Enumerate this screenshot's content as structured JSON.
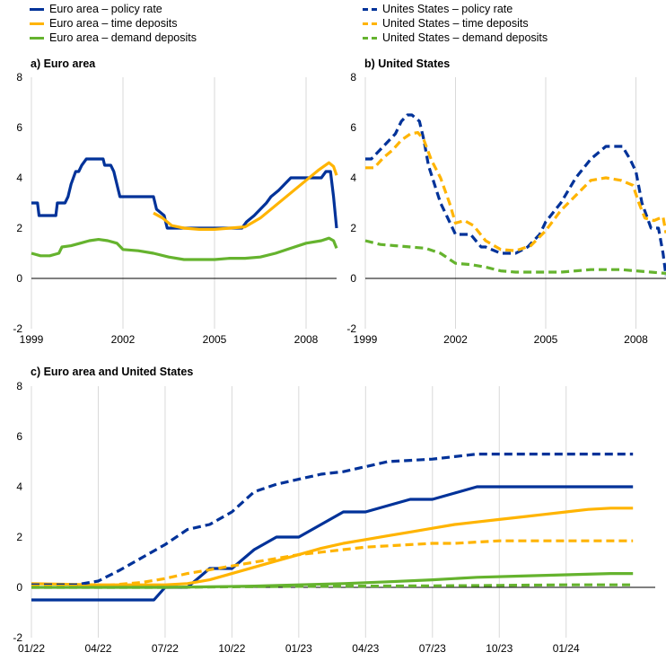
{
  "legend": [
    {
      "label": "Euro area – policy rate",
      "color": "#003299",
      "dash": false
    },
    {
      "label": "Euro area – time deposits",
      "color": "#FFB400",
      "dash": false
    },
    {
      "label": "Euro area – demand deposits",
      "color": "#65B32E",
      "dash": false
    },
    {
      "label": "Unites States – policy rate",
      "color": "#003299",
      "dash": true
    },
    {
      "label": "United States – time deposits",
      "color": "#FFB400",
      "dash": true
    },
    {
      "label": "United States – demand deposits",
      "color": "#65B32E",
      "dash": true
    }
  ],
  "chart_data": [
    {
      "type": "line",
      "title": "a) Euro area",
      "ylim": [
        -2,
        8
      ],
      "yticks": [
        -2,
        0,
        2,
        4,
        6,
        8
      ],
      "xlim": [
        1999.0,
        2009.0
      ],
      "xticks": [
        {
          "x": 1999,
          "label": "1999"
        },
        {
          "x": 2002,
          "label": "2002"
        },
        {
          "x": 2005,
          "label": "2005"
        },
        {
          "x": 2008,
          "label": "2008"
        }
      ],
      "grid": true,
      "series": [
        {
          "name": "Euro area – policy rate",
          "color": "#003299",
          "dash": false,
          "x": [
            1999.0,
            1999.2,
            1999.25,
            1999.8,
            1999.85,
            2000.1,
            2000.2,
            2000.3,
            2000.45,
            2000.55,
            2000.65,
            2000.8,
            2001.35,
            2001.4,
            2001.6,
            2001.7,
            2001.8,
            2001.9,
            2003.0,
            2003.1,
            2003.35,
            2003.45,
            2005.9,
            2006.05,
            2006.3,
            2006.5,
            2006.7,
            2006.85,
            2007.1,
            2007.3,
            2007.5,
            2008.5,
            2008.65,
            2008.8,
            2008.9,
            2009.0
          ],
          "y": [
            3.0,
            3.0,
            2.5,
            2.5,
            3.0,
            3.0,
            3.25,
            3.75,
            4.25,
            4.25,
            4.5,
            4.75,
            4.75,
            4.5,
            4.5,
            4.25,
            3.75,
            3.25,
            3.25,
            2.75,
            2.5,
            2.0,
            2.0,
            2.25,
            2.5,
            2.75,
            3.0,
            3.25,
            3.5,
            3.75,
            4.0,
            4.0,
            4.25,
            4.25,
            3.25,
            2.0
          ]
        },
        {
          "name": "Euro area – time deposits",
          "color": "#FFB400",
          "dash": false,
          "x": [
            2003.0,
            2003.3,
            2003.6,
            2004.0,
            2004.5,
            2005.0,
            2005.5,
            2006.0,
            2006.5,
            2007.0,
            2007.5,
            2008.0,
            2008.4,
            2008.75,
            2008.9,
            2009.0
          ],
          "y": [
            2.6,
            2.4,
            2.1,
            2.0,
            1.95,
            1.95,
            2.0,
            2.05,
            2.4,
            2.9,
            3.4,
            3.9,
            4.3,
            4.6,
            4.45,
            4.1
          ]
        },
        {
          "name": "Euro area – demand deposits",
          "color": "#65B32E",
          "dash": false,
          "x": [
            1999.0,
            1999.3,
            1999.6,
            1999.9,
            2000.0,
            2000.3,
            2000.6,
            2000.9,
            2001.2,
            2001.5,
            2001.8,
            2002.0,
            2002.5,
            2003.0,
            2003.5,
            2004.0,
            2004.5,
            2005.0,
            2005.5,
            2006.0,
            2006.5,
            2007.0,
            2007.5,
            2008.0,
            2008.5,
            2008.75,
            2008.9,
            2009.0
          ],
          "y": [
            1.0,
            0.9,
            0.9,
            1.0,
            1.25,
            1.3,
            1.4,
            1.5,
            1.55,
            1.5,
            1.4,
            1.15,
            1.1,
            1.0,
            0.85,
            0.75,
            0.75,
            0.75,
            0.8,
            0.8,
            0.85,
            1.0,
            1.2,
            1.4,
            1.5,
            1.6,
            1.5,
            1.2
          ]
        }
      ]
    },
    {
      "type": "line",
      "title": "b) United States",
      "ylim": [
        -2,
        8
      ],
      "yticks": [
        -2,
        0,
        2,
        4,
        6,
        8
      ],
      "xlim": [
        1999.0,
        2009.0
      ],
      "xticks": [
        {
          "x": 1999,
          "label": "1999"
        },
        {
          "x": 2002,
          "label": "2002"
        },
        {
          "x": 2005,
          "label": "2005"
        },
        {
          "x": 2008,
          "label": "2008"
        }
      ],
      "grid": true,
      "series": [
        {
          "name": "Unites States – policy rate",
          "color": "#003299",
          "dash": true,
          "x": [
            1999.0,
            1999.2,
            1999.4,
            1999.6,
            1999.8,
            2000.0,
            2000.2,
            2000.4,
            2000.55,
            2000.8,
            2000.95,
            2001.1,
            2001.3,
            2001.5,
            2001.7,
            2001.9,
            2002.0,
            2002.5,
            2002.85,
            2003.0,
            2003.5,
            2004.0,
            2004.4,
            2004.6,
            2004.8,
            2005.0,
            2005.5,
            2006.0,
            2006.5,
            2007.0,
            2007.55,
            2007.8,
            2008.0,
            2008.2,
            2008.5,
            2008.75,
            2008.9,
            2009.0
          ],
          "y": [
            4.75,
            4.75,
            5.0,
            5.25,
            5.5,
            5.75,
            6.25,
            6.5,
            6.5,
            6.25,
            5.5,
            4.5,
            3.75,
            3.0,
            2.5,
            2.0,
            1.75,
            1.75,
            1.25,
            1.25,
            1.0,
            1.0,
            1.25,
            1.5,
            1.75,
            2.25,
            3.0,
            4.0,
            4.75,
            5.25,
            5.25,
            4.75,
            4.25,
            3.0,
            2.0,
            2.0,
            1.0,
            0.1
          ]
        },
        {
          "name": "United States – time deposits",
          "color": "#FFB400",
          "dash": true,
          "x": [
            1999.0,
            1999.3,
            1999.6,
            1999.9,
            2000.2,
            2000.5,
            2000.75,
            2000.95,
            2001.2,
            2001.5,
            2001.8,
            2002.0,
            2002.3,
            2002.6,
            2003.0,
            2003.5,
            2004.0,
            2004.5,
            2005.0,
            2005.5,
            2006.0,
            2006.5,
            2007.0,
            2007.5,
            2007.9,
            2008.1,
            2008.3,
            2008.6,
            2008.9,
            2009.0
          ],
          "y": [
            4.4,
            4.4,
            4.8,
            5.1,
            5.5,
            5.75,
            5.8,
            5.5,
            4.7,
            4.0,
            3.0,
            2.2,
            2.3,
            2.1,
            1.5,
            1.15,
            1.1,
            1.3,
            1.9,
            2.7,
            3.3,
            3.9,
            4.0,
            3.9,
            3.7,
            3.0,
            2.4,
            2.3,
            2.45,
            1.8
          ]
        },
        {
          "name": "United States – demand deposits",
          "color": "#65B32E",
          "dash": true,
          "x": [
            1999.0,
            1999.5,
            2000.0,
            2000.5,
            2001.0,
            2001.5,
            2002.0,
            2002.5,
            2003.0,
            2003.5,
            2004.0,
            2004.5,
            2005.0,
            2005.5,
            2006.0,
            2006.5,
            2007.0,
            2007.5,
            2008.0,
            2008.5,
            2009.0
          ],
          "y": [
            1.5,
            1.35,
            1.3,
            1.25,
            1.2,
            1.0,
            0.6,
            0.55,
            0.45,
            0.3,
            0.25,
            0.25,
            0.25,
            0.25,
            0.3,
            0.35,
            0.35,
            0.35,
            0.3,
            0.25,
            0.2
          ]
        }
      ]
    },
    {
      "type": "line",
      "title": "c) Euro area and United States",
      "ylim": [
        -2,
        8
      ],
      "yticks": [
        -2,
        0,
        2,
        4,
        6,
        8
      ],
      "xlim": [
        0,
        28
      ],
      "xticks": [
        {
          "x": 0,
          "label": "01/22"
        },
        {
          "x": 3,
          "label": "04/22"
        },
        {
          "x": 6,
          "label": "07/22"
        },
        {
          "x": 9,
          "label": "10/22"
        },
        {
          "x": 12,
          "label": "01/23"
        },
        {
          "x": 15,
          "label": "04/23"
        },
        {
          "x": 18,
          "label": "07/23"
        },
        {
          "x": 21,
          "label": "10/23"
        },
        {
          "x": 24,
          "label": "01/24"
        }
      ],
      "grid": true,
      "series": [
        {
          "name": "Euro area – policy rate",
          "color": "#003299",
          "dash": false,
          "x": [
            0,
            1,
            2,
            3,
            4,
            5,
            5.5,
            6,
            7,
            8,
            9,
            10,
            11,
            12,
            13,
            14,
            15,
            16,
            17,
            18,
            19,
            20,
            21,
            22,
            23,
            24,
            25,
            26,
            27
          ],
          "y": [
            -0.5,
            -0.5,
            -0.5,
            -0.5,
            -0.5,
            -0.5,
            -0.5,
            0.0,
            0.0,
            0.75,
            0.75,
            1.5,
            2.0,
            2.0,
            2.5,
            3.0,
            3.0,
            3.25,
            3.5,
            3.5,
            3.75,
            4.0,
            4.0,
            4.0,
            4.0,
            4.0,
            4.0,
            4.0,
            4.0
          ]
        },
        {
          "name": "Euro area – time deposits",
          "color": "#FFB400",
          "dash": false,
          "x": [
            0,
            3,
            6,
            7,
            8,
            9,
            10,
            11,
            12,
            13,
            14,
            15,
            16,
            17,
            18,
            19,
            20,
            21,
            22,
            23,
            24,
            25,
            26,
            27
          ],
          "y": [
            0.15,
            0.1,
            0.1,
            0.15,
            0.3,
            0.55,
            0.8,
            1.05,
            1.3,
            1.55,
            1.75,
            1.9,
            2.05,
            2.2,
            2.35,
            2.5,
            2.6,
            2.7,
            2.8,
            2.9,
            3.0,
            3.1,
            3.15,
            3.15
          ]
        },
        {
          "name": "Euro area – demand deposits",
          "color": "#65B32E",
          "dash": false,
          "x": [
            0,
            3,
            6,
            8,
            10,
            12,
            14,
            16,
            18,
            20,
            22,
            24,
            26,
            27
          ],
          "y": [
            0.0,
            0.0,
            0.0,
            0.02,
            0.05,
            0.1,
            0.15,
            0.22,
            0.3,
            0.4,
            0.45,
            0.5,
            0.55,
            0.55
          ]
        },
        {
          "name": "Unites States – policy rate",
          "color": "#003299",
          "dash": true,
          "x": [
            0,
            2,
            3,
            4,
            5,
            6,
            7,
            8,
            9,
            10,
            11,
            12,
            13,
            14,
            15,
            16,
            17,
            18,
            19,
            20,
            21,
            22,
            23,
            24,
            25,
            26,
            27
          ],
          "y": [
            0.1,
            0.1,
            0.25,
            0.7,
            1.2,
            1.7,
            2.3,
            2.5,
            3.0,
            3.8,
            4.1,
            4.3,
            4.5,
            4.6,
            4.8,
            5.0,
            5.05,
            5.1,
            5.2,
            5.3,
            5.3,
            5.3,
            5.3,
            5.3,
            5.3,
            5.3,
            5.3
          ]
        },
        {
          "name": "United States – time deposits",
          "color": "#FFB400",
          "dash": true,
          "x": [
            0,
            3,
            5,
            6,
            7,
            8,
            9,
            10,
            11,
            12,
            13,
            14,
            15,
            16,
            17,
            18,
            19,
            20,
            21,
            22,
            23,
            24,
            25,
            26,
            27
          ],
          "y": [
            0.05,
            0.05,
            0.2,
            0.35,
            0.55,
            0.7,
            0.85,
            1.0,
            1.15,
            1.3,
            1.4,
            1.5,
            1.6,
            1.65,
            1.7,
            1.75,
            1.75,
            1.8,
            1.85,
            1.85,
            1.85,
            1.85,
            1.85,
            1.85,
            1.85
          ]
        },
        {
          "name": "United States – demand deposits",
          "color": "#65B32E",
          "dash": true,
          "x": [
            0,
            3,
            6,
            9,
            12,
            15,
            18,
            21,
            24,
            27
          ],
          "y": [
            0.0,
            0.0,
            0.0,
            0.02,
            0.04,
            0.05,
            0.06,
            0.08,
            0.1,
            0.1
          ]
        }
      ]
    }
  ]
}
